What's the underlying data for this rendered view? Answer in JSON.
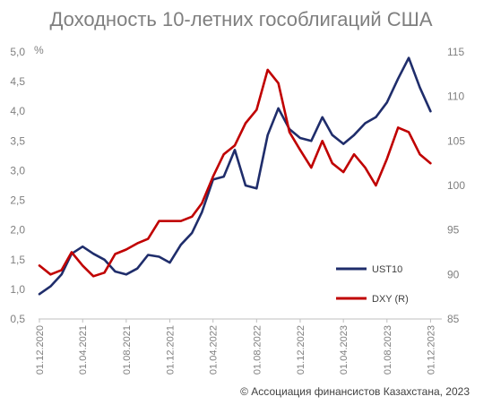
{
  "chart_data": {
    "type": "line",
    "title": "Доходность 10-летних гособлигаций США",
    "y_left": {
      "unit_label": "%",
      "ylim": [
        0.5,
        5.0
      ],
      "ticks": [
        "5,0",
        "4,5",
        "4,0",
        "3,5",
        "3,0",
        "2,5",
        "2,0",
        "1,5",
        "1,0",
        "0,5"
      ],
      "tick_values": [
        5.0,
        4.5,
        4.0,
        3.5,
        3.0,
        2.5,
        2.0,
        1.5,
        1.0,
        0.5
      ]
    },
    "y_right": {
      "ylim": [
        85,
        115
      ],
      "ticks": [
        "115",
        "110",
        "105",
        "100",
        "95",
        "90",
        "85"
      ],
      "tick_values": [
        115,
        110,
        105,
        100,
        95,
        90,
        85
      ]
    },
    "x_ticks": [
      "01.12.2020",
      "01.04.2021",
      "01.08.2021",
      "01.12.2021",
      "01.04.2022",
      "01.08.2022",
      "01.12.2022",
      "01.04.2023",
      "01.08.2023",
      "01.12.2023"
    ],
    "x_range": [
      "2020-12-01",
      "2023-12-15"
    ],
    "grid": false,
    "legend_position": "bottom-right",
    "series": [
      {
        "name": "UST10",
        "axis": "left",
        "color": "#1f2d6b",
        "x": [
          "2020-12-01",
          "2021-01-01",
          "2021-02-01",
          "2021-03-01",
          "2021-04-01",
          "2021-05-01",
          "2021-06-01",
          "2021-07-01",
          "2021-08-01",
          "2021-09-01",
          "2021-10-01",
          "2021-11-01",
          "2021-12-01",
          "2022-01-01",
          "2022-02-01",
          "2022-03-01",
          "2022-04-01",
          "2022-05-01",
          "2022-06-01",
          "2022-07-01",
          "2022-08-01",
          "2022-09-01",
          "2022-10-01",
          "2022-11-01",
          "2022-12-01",
          "2023-01-01",
          "2023-02-01",
          "2023-03-01",
          "2023-04-01",
          "2023-05-01",
          "2023-06-01",
          "2023-07-01",
          "2023-08-01",
          "2023-09-01",
          "2023-10-01",
          "2023-11-01",
          "2023-12-01"
        ],
        "y": [
          0.92,
          1.05,
          1.25,
          1.6,
          1.72,
          1.6,
          1.5,
          1.3,
          1.25,
          1.35,
          1.58,
          1.55,
          1.45,
          1.75,
          1.95,
          2.3,
          2.85,
          2.9,
          3.35,
          2.75,
          2.7,
          3.6,
          4.05,
          3.7,
          3.55,
          3.5,
          3.9,
          3.6,
          3.45,
          3.6,
          3.8,
          3.9,
          4.15,
          4.55,
          4.9,
          4.4,
          4.0
        ]
      },
      {
        "name": "DXY (R)",
        "axis": "right",
        "color": "#c00000",
        "x": [
          "2020-12-01",
          "2021-01-01",
          "2021-02-01",
          "2021-03-01",
          "2021-04-01",
          "2021-05-01",
          "2021-06-01",
          "2021-07-01",
          "2021-08-01",
          "2021-09-01",
          "2021-10-01",
          "2021-11-01",
          "2021-12-01",
          "2022-01-01",
          "2022-02-01",
          "2022-03-01",
          "2022-04-01",
          "2022-05-01",
          "2022-06-01",
          "2022-07-01",
          "2022-08-01",
          "2022-09-01",
          "2022-10-01",
          "2022-11-01",
          "2022-12-01",
          "2023-01-01",
          "2023-02-01",
          "2023-03-01",
          "2023-04-01",
          "2023-05-01",
          "2023-06-01",
          "2023-07-01",
          "2023-08-01",
          "2023-09-01",
          "2023-10-01",
          "2023-11-01",
          "2023-12-01"
        ],
        "y": [
          91.0,
          90.0,
          90.5,
          92.5,
          91.0,
          89.8,
          90.2,
          92.3,
          92.8,
          93.5,
          94.0,
          96.0,
          96.0,
          96.0,
          96.5,
          98.0,
          101.0,
          103.5,
          104.5,
          107.0,
          108.5,
          113.0,
          111.5,
          106.0,
          104.0,
          102.0,
          105.0,
          102.5,
          101.5,
          103.5,
          102.0,
          100.0,
          103.0,
          106.5,
          106.0,
          103.5,
          102.5
        ]
      }
    ]
  },
  "legend": [
    {
      "label": "UST10",
      "color": "#1f2d6b"
    },
    {
      "label": "DXY (R)",
      "color": "#c00000"
    }
  ],
  "footer": "© Ассоциация финансистов Казахстана, 2023"
}
